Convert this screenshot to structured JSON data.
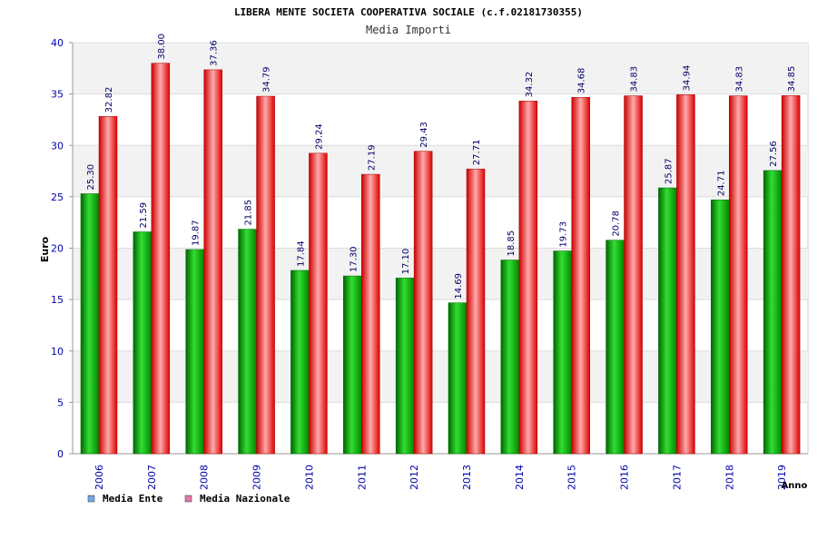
{
  "chart_data": {
    "type": "bar",
    "title": "LIBERA MENTE SOCIETA COOPERATIVA SOCIALE (c.f.02181730355)",
    "subtitle": "Media Importi",
    "xlabel": "Anno",
    "ylabel": "Euro",
    "ylim": [
      0,
      40
    ],
    "yticks": [
      0,
      5,
      10,
      15,
      20,
      25,
      30,
      35,
      40
    ],
    "grid": true,
    "legend_position": "bottom-left",
    "categories": [
      "2006",
      "2007",
      "2008",
      "2009",
      "2010",
      "2011",
      "2012",
      "2013",
      "2014",
      "2015",
      "2016",
      "2017",
      "2018",
      "2019"
    ],
    "series": [
      {
        "name": "Media Ente",
        "color": "#00aa00",
        "legend_color": "#6fa8e8",
        "values": [
          25.3,
          21.59,
          19.87,
          21.85,
          17.84,
          17.3,
          17.1,
          14.69,
          18.85,
          19.73,
          20.78,
          25.87,
          24.71,
          27.56
        ],
        "labels": [
          "25.30",
          "21.59",
          "19.87",
          "21.85",
          "17.84",
          "17.30",
          "17.10",
          "14.69",
          "18.85",
          "19.73",
          "20.78",
          "25.87",
          "24.71",
          "27.56"
        ]
      },
      {
        "name": "Media Nazionale",
        "color": "#ee1111",
        "legend_color": "#e07aa8",
        "values": [
          32.82,
          38.0,
          37.36,
          34.79,
          29.24,
          27.19,
          29.43,
          27.71,
          34.32,
          34.68,
          34.83,
          34.94,
          34.83,
          34.85
        ],
        "labels": [
          "32.82",
          "38.00",
          "37.36",
          "34.79",
          "29.24",
          "27.19",
          "29.43",
          "27.71",
          "34.32",
          "34.68",
          "34.83",
          "34.94",
          "34.83",
          "34.85"
        ]
      }
    ]
  }
}
